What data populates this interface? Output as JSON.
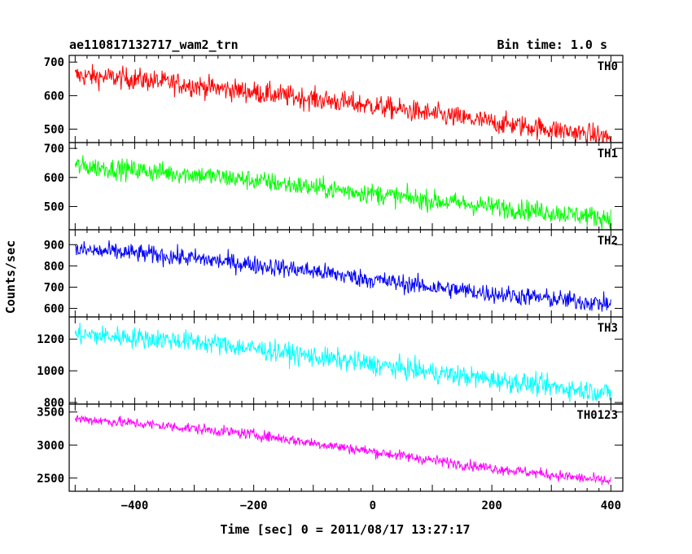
{
  "chart_data": {
    "type": "line",
    "title_left": "ae110817132717_wam2_trn",
    "title_right": "Bin time: 1.0 s",
    "xlabel": "Time [sec] 0 = 2011/08/17 13:27:17",
    "ylabel": "Counts/sec",
    "xlim": [
      -510,
      420
    ],
    "x_ticks": [
      -400,
      -200,
      0,
      200,
      400
    ],
    "grid": false,
    "panels": [
      {
        "name": "TH0",
        "color": "#ff0000",
        "ylim": [
          460,
          720
        ],
        "y_ticks": [
          500,
          600,
          700
        ],
        "start": 660,
        "end": 475,
        "noise": 30,
        "x": [
          -500,
          -400,
          -300,
          -200,
          -100,
          0,
          100,
          200,
          300,
          400
        ],
        "values": [
          660,
          650,
          630,
          610,
          590,
          570,
          545,
          520,
          500,
          475
        ]
      },
      {
        "name": "TH1",
        "color": "#00ff00",
        "ylim": [
          420,
          720
        ],
        "y_ticks": [
          500,
          600,
          700
        ],
        "start": 640,
        "end": 460,
        "noise": 32,
        "x": [
          -500,
          -400,
          -300,
          -200,
          -100,
          0,
          100,
          200,
          300,
          400
        ],
        "values": [
          640,
          625,
          610,
          590,
          565,
          545,
          520,
          500,
          480,
          460
        ]
      },
      {
        "name": "TH2",
        "color": "#0000ff",
        "ylim": [
          560,
          970
        ],
        "y_ticks": [
          600,
          700,
          800,
          900
        ],
        "start": 875,
        "end": 620,
        "noise": 40,
        "x": [
          -500,
          -400,
          -300,
          -200,
          -100,
          0,
          100,
          200,
          300,
          400
        ],
        "values": [
          875,
          860,
          835,
          805,
          775,
          735,
          700,
          670,
          645,
          620
        ]
      },
      {
        "name": "TH3",
        "color": "#00ffff",
        "ylim": [
          790,
          1340
        ],
        "y_ticks": [
          800,
          1000,
          1200
        ],
        "start": 1230,
        "end": 860,
        "noise": 60,
        "x": [
          -500,
          -400,
          -300,
          -200,
          -100,
          0,
          100,
          200,
          300,
          400
        ],
        "values": [
          1230,
          1210,
          1185,
          1140,
          1090,
          1040,
          990,
          945,
          900,
          860
        ]
      },
      {
        "name": "TH0123",
        "color": "#ff00ff",
        "ylim": [
          2300,
          3620
        ],
        "y_ticks": [
          2500,
          3000,
          3500
        ],
        "start": 3400,
        "end": 2450,
        "noise": 75,
        "x": [
          -500,
          -400,
          -300,
          -200,
          -100,
          0,
          100,
          200,
          300,
          400
        ],
        "values": [
          3400,
          3330,
          3250,
          3160,
          3030,
          2900,
          2770,
          2650,
          2550,
          2450
        ]
      }
    ]
  }
}
